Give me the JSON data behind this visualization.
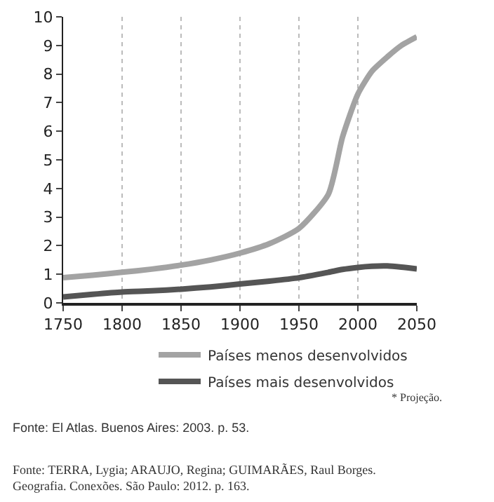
{
  "chart_data": {
    "type": "line",
    "x": [
      1750,
      1775,
      1800,
      1825,
      1850,
      1875,
      1900,
      1925,
      1950,
      1975,
      1987,
      2000,
      2012,
      2025,
      2037,
      2050
    ],
    "series": [
      {
        "name": "Países menos desenvolvidos",
        "color": "#a3a3a3",
        "values": [
          0.88,
          0.97,
          1.07,
          1.18,
          1.32,
          1.5,
          1.74,
          2.07,
          2.6,
          3.8,
          5.8,
          7.3,
          8.1,
          8.6,
          9.0,
          9.3
        ]
      },
      {
        "name": "Países mais desenvolvidos",
        "color": "#555555",
        "values": [
          0.21,
          0.3,
          0.38,
          0.42,
          0.48,
          0.56,
          0.66,
          0.76,
          0.88,
          1.07,
          1.17,
          1.24,
          1.28,
          1.29,
          1.25,
          1.19
        ]
      }
    ],
    "xlim": [
      1750,
      2050
    ],
    "xticks": [
      1750,
      1800,
      1850,
      1900,
      1950,
      2000,
      2050
    ],
    "ylim": [
      0,
      10
    ],
    "yticks": [
      0,
      1,
      2,
      3,
      4,
      5,
      6,
      7,
      8,
      9,
      10
    ],
    "grid": "x",
    "legend": "bottom",
    "marker": "none",
    "line_style": "solid",
    "annotations": [
      "* Projeção.",
      "Fonte: El Atlas. Buenos Aires: 2003. p. 53.",
      "Fonte: TERRA, Lygia; ARAUJO, Regina; GUIMARÃES, Raul Borges. Geografia. Conexões. São Paulo: 2012. p. 163."
    ]
  }
}
